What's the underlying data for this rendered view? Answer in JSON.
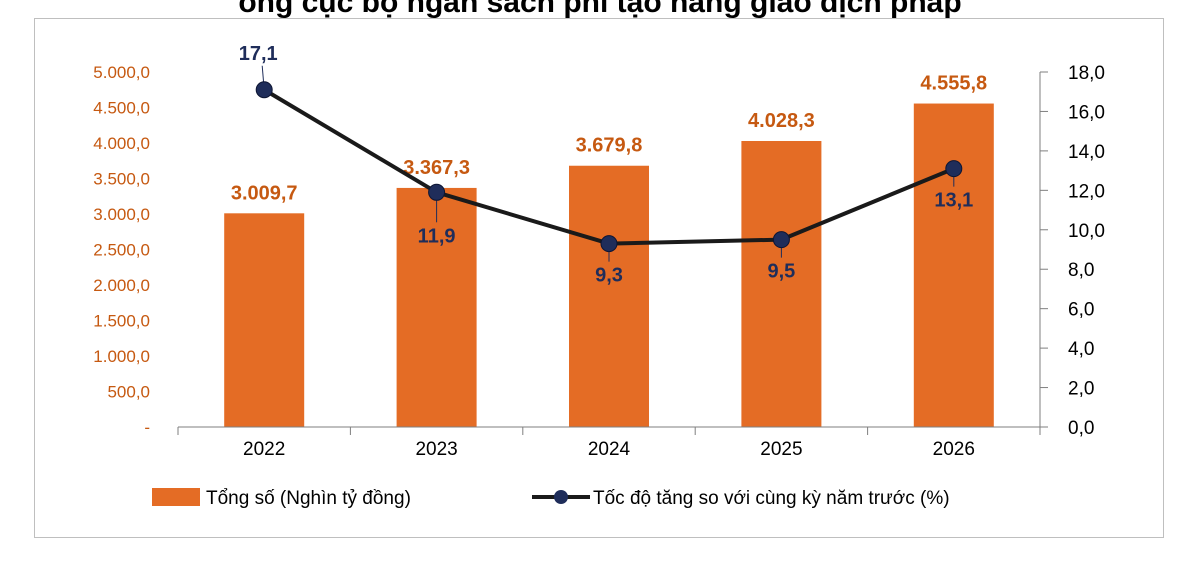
{
  "title": "ổng cục bộ ngân sách phi tạo hàng giao dịch pháp",
  "chart_data": {
    "type": "bar+line",
    "categories": [
      "2022",
      "2023",
      "2024",
      "2025",
      "2026"
    ],
    "series": [
      {
        "name": "Tổng số (Nghìn tỷ đồng)",
        "type": "bar",
        "axis": "left",
        "values": [
          3009.7,
          3367.3,
          3679.8,
          4028.3,
          4555.8
        ],
        "labels": [
          "3.009,7",
          "3.367,3",
          "3.679,8",
          "4.028,3",
          "4.555,8"
        ],
        "color": "#e46c25"
      },
      {
        "name": "Tốc độ tăng so với cùng kỳ năm trước (%)",
        "type": "line",
        "axis": "right",
        "values": [
          17.1,
          11.9,
          9.3,
          9.5,
          13.1
        ],
        "labels": [
          "17,1",
          "11,9",
          "9,3",
          "9,5",
          "13,1"
        ],
        "color": "#1a1a1a",
        "marker_color": "#1f2d5a"
      }
    ],
    "left_axis": {
      "ylim": [
        0,
        5000
      ],
      "ticks": [
        "-",
        "500,0",
        "1.000,0",
        "1.500,0",
        "2.000,0",
        "2.500,0",
        "3.000,0",
        "3.500,0",
        "4.000,0",
        "4.500,0",
        "5.000,0"
      ],
      "color": "#c65911"
    },
    "right_axis": {
      "ylim": [
        0,
        18
      ],
      "ticks": [
        "0,0",
        "2,0",
        "4,0",
        "6,0",
        "8,0",
        "10,0",
        "12,0",
        "14,0",
        "16,0",
        "18,0"
      ]
    },
    "grid": false,
    "legend": "bottom"
  }
}
